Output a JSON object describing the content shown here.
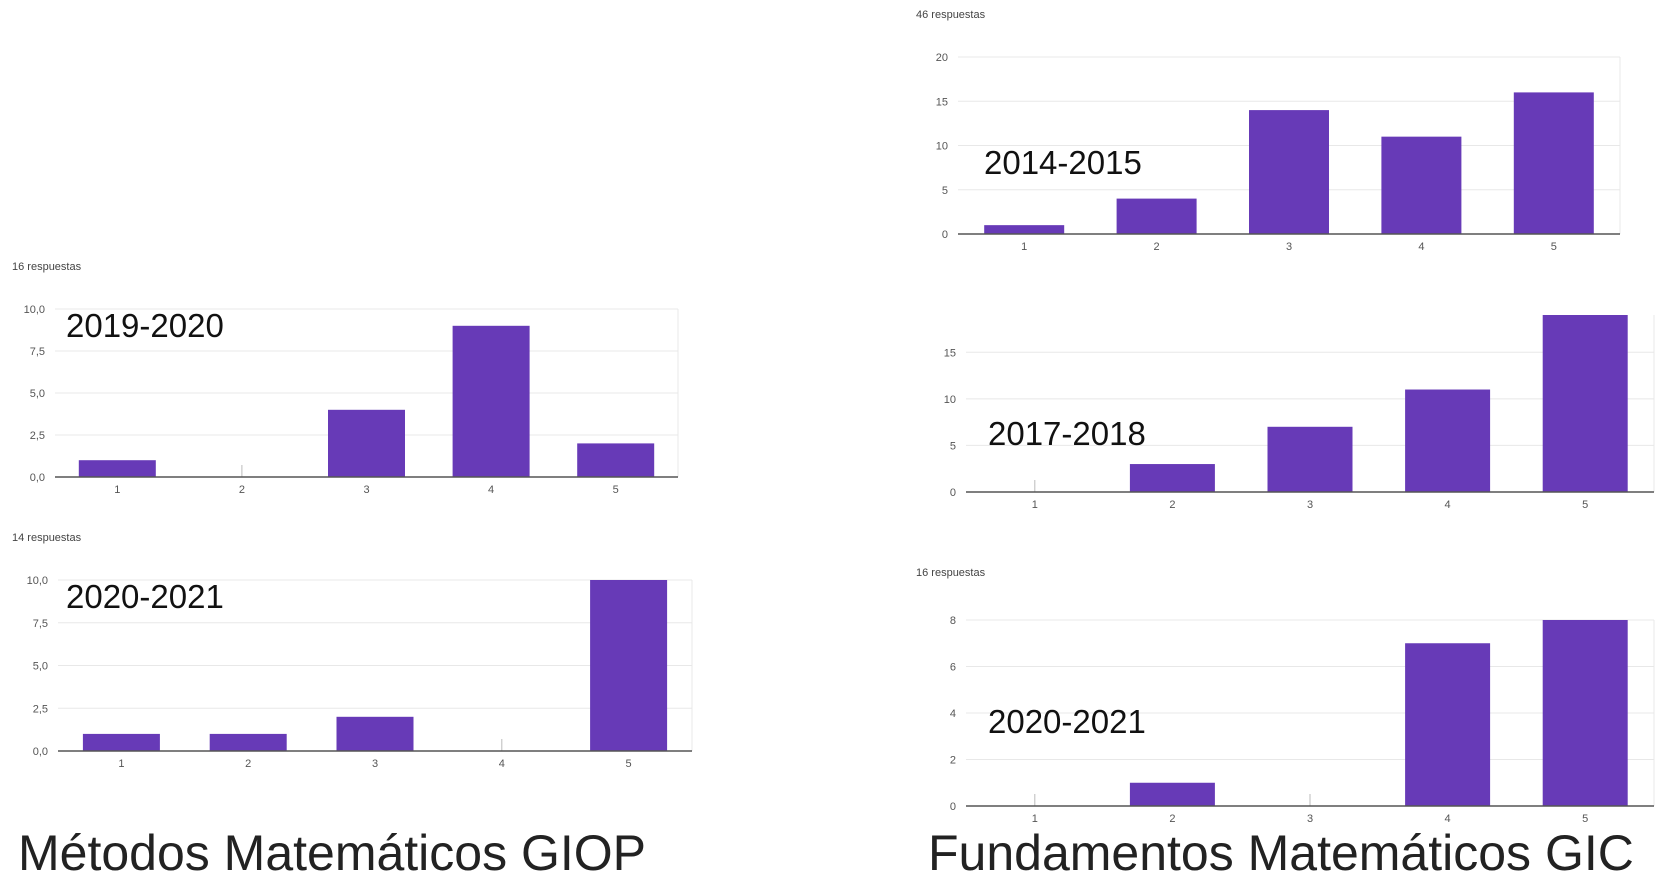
{
  "colors": {
    "bar": "#673ab7",
    "grid": "#e8e8e8",
    "axis": "#555555",
    "tick_text": "#555555"
  },
  "captions": {
    "left": "Métodos Matemáticos GIOP",
    "right": "Fundamentos Matemáticos GIC"
  },
  "chart_data": [
    {
      "type": "bar",
      "subtitle": "16 respuestas",
      "year_label": "2019-2020",
      "categories": [
        "1",
        "2",
        "3",
        "4",
        "5"
      ],
      "values": [
        1,
        0,
        4,
        9,
        2
      ],
      "ylim": [
        0,
        10
      ],
      "yticks": [
        "0,0",
        "2,5",
        "5,0",
        "7,5",
        "10,0"
      ],
      "ytick_values": [
        0,
        2.5,
        5,
        7.5,
        10
      ],
      "grid": true
    },
    {
      "type": "bar",
      "subtitle": "14 respuestas",
      "year_label": "2020-2021",
      "categories": [
        "1",
        "2",
        "3",
        "4",
        "5"
      ],
      "values": [
        1,
        1,
        2,
        0,
        10
      ],
      "ylim": [
        0,
        10
      ],
      "yticks": [
        "0,0",
        "2,5",
        "5,0",
        "7,5",
        "10,0"
      ],
      "ytick_values": [
        0,
        2.5,
        5,
        7.5,
        10
      ],
      "grid": true
    },
    {
      "type": "bar",
      "subtitle": "46 respuestas",
      "year_label": "2014-2015",
      "categories": [
        "1",
        "2",
        "3",
        "4",
        "5"
      ],
      "values": [
        1,
        4,
        14,
        11,
        16
      ],
      "ylim": [
        0,
        20
      ],
      "yticks": [
        "0",
        "5",
        "10",
        "15",
        "20"
      ],
      "ytick_values": [
        0,
        5,
        10,
        15,
        20
      ],
      "grid": true
    },
    {
      "type": "bar",
      "subtitle": "",
      "year_label": "2017-2018",
      "categories": [
        "1",
        "2",
        "3",
        "4",
        "5"
      ],
      "values": [
        0,
        3,
        7,
        11,
        19
      ],
      "ylim": [
        0,
        19
      ],
      "yticks": [
        "0",
        "5",
        "10",
        "15"
      ],
      "ytick_values": [
        0,
        5,
        10,
        15
      ],
      "grid": true
    },
    {
      "type": "bar",
      "subtitle": "16 respuestas",
      "year_label": "2020-2021",
      "categories": [
        "1",
        "2",
        "3",
        "4",
        "5"
      ],
      "values": [
        0,
        1,
        0,
        7,
        8
      ],
      "ylim": [
        0,
        8
      ],
      "yticks": [
        "0",
        "2",
        "4",
        "6",
        "8"
      ],
      "ytick_values": [
        0,
        2,
        4,
        6,
        8
      ],
      "grid": true
    }
  ]
}
